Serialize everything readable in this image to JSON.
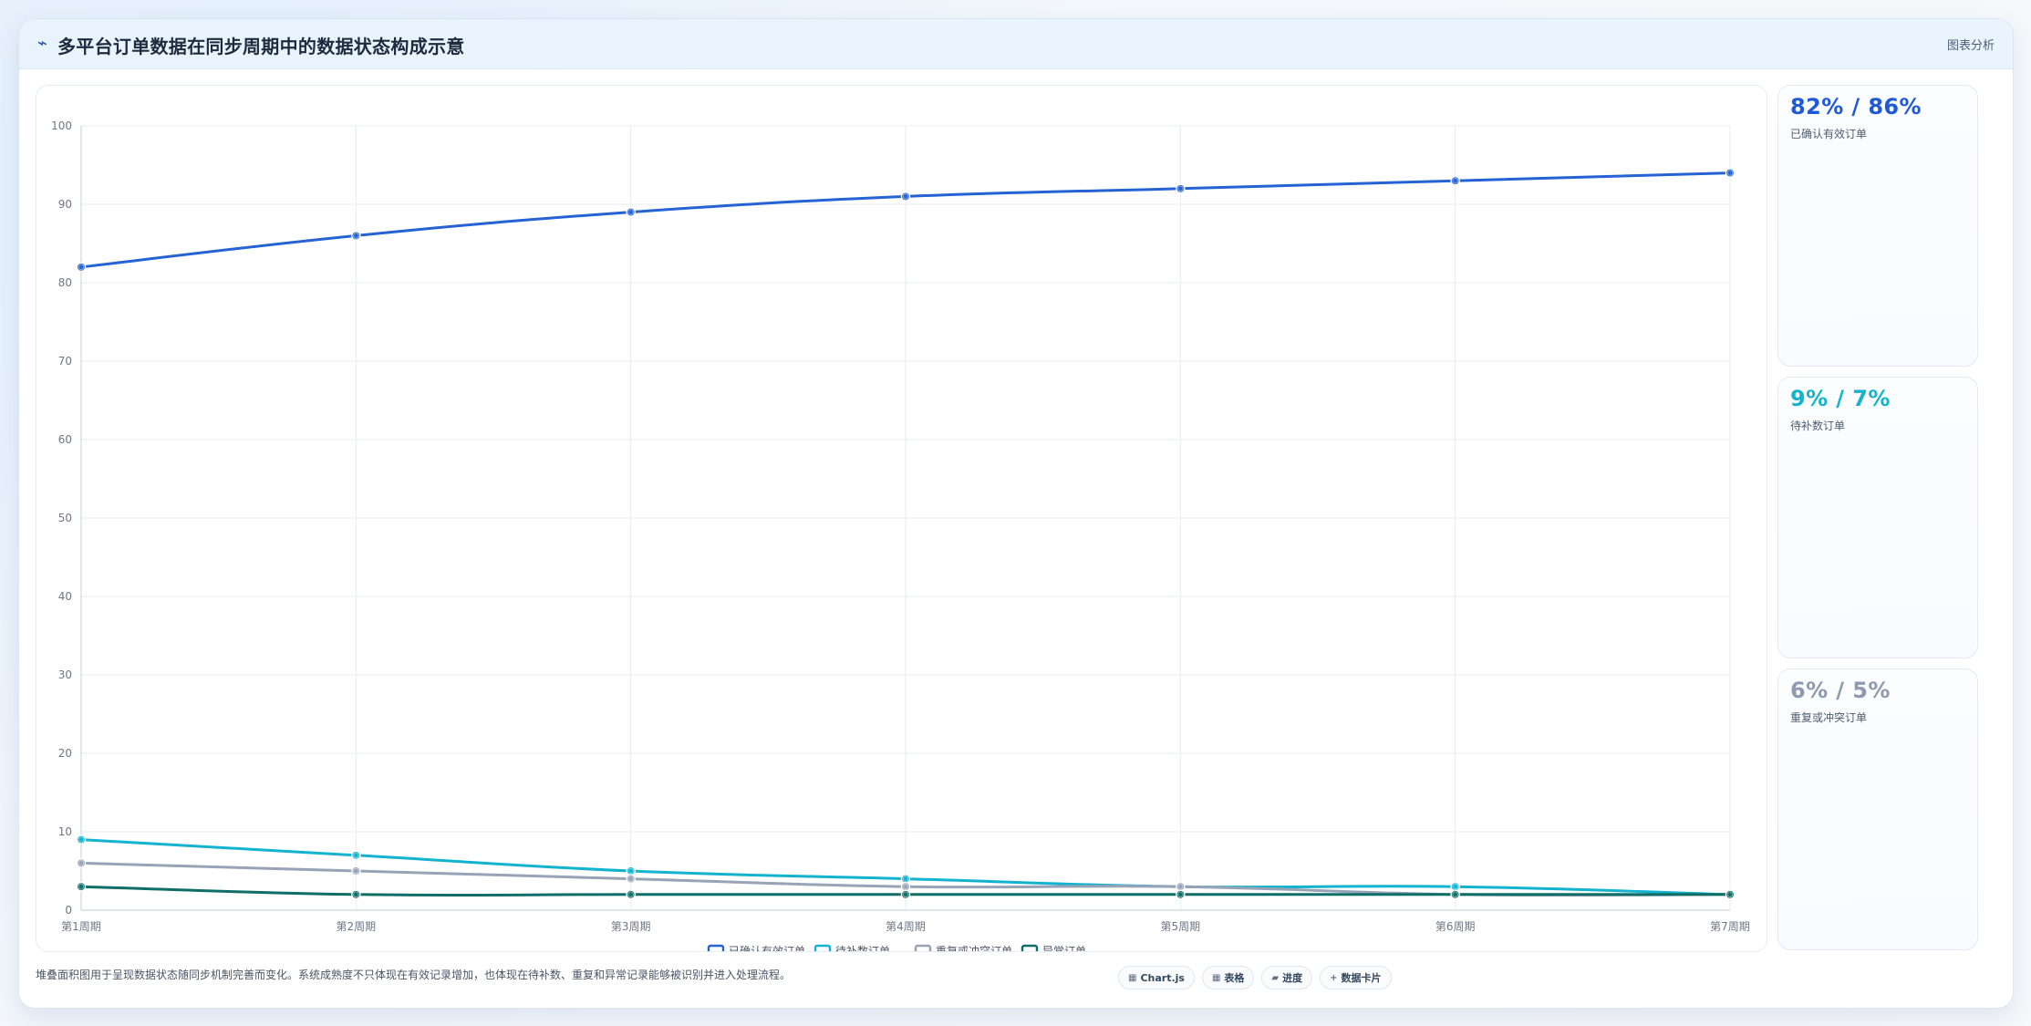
{
  "header": {
    "icon": "chart-line-icon",
    "title": "多平台订单数据在同步周期中的数据状态构成示意",
    "action_label": "图表分析"
  },
  "chart_data": {
    "type": "line",
    "categories": [
      "第1周期",
      "第2周期",
      "第3周期",
      "第4周期",
      "第5周期",
      "第6周期",
      "第7周期"
    ],
    "ylim": [
      0,
      100
    ],
    "yticks": [
      0,
      10,
      20,
      30,
      40,
      50,
      60,
      70,
      80,
      90,
      100
    ],
    "grid": true,
    "legend_position": "bottom",
    "series": [
      {
        "name": "已确认有效订单",
        "values": [
          82,
          86,
          89,
          91,
          92,
          93,
          94
        ],
        "color": "#2563D4"
      },
      {
        "name": "待补数订单",
        "values": [
          9,
          7,
          5,
          4,
          3,
          3,
          2
        ],
        "color": "#13B3CF"
      },
      {
        "name": "重复或冲突订单",
        "values": [
          6,
          5,
          4,
          3,
          3,
          2,
          2
        ],
        "color": "#98A3B8"
      },
      {
        "name": "异常订单",
        "values": [
          3,
          2,
          2,
          2,
          2,
          2,
          2
        ],
        "color": "#0F6F68"
      }
    ]
  },
  "sidebar": {
    "cards": [
      {
        "value": "82% / 86%",
        "label": "已确认有效订单",
        "color": "#1F59D7"
      },
      {
        "value": "9% / 7%",
        "label": "待补数订单",
        "color": "#15B4CC"
      },
      {
        "value": "6% / 5%",
        "label": "重复或冲突订单",
        "color": "#8F9AB1"
      }
    ]
  },
  "footer": {
    "text": "堆叠面积图用于呈现数据状态随同步机制完善而变化。系统成熟度不只体现在有效记录增加，也体现在待补数、重复和异常记录能够被识别并进入处理流程。",
    "pills": [
      {
        "label": "Chart.js",
        "icon": "chart-icon"
      },
      {
        "label": "表格",
        "icon": "table-icon"
      },
      {
        "label": "进度",
        "icon": "progress-icon"
      },
      {
        "label": "数据卡片",
        "icon": "plus-icon"
      }
    ]
  }
}
